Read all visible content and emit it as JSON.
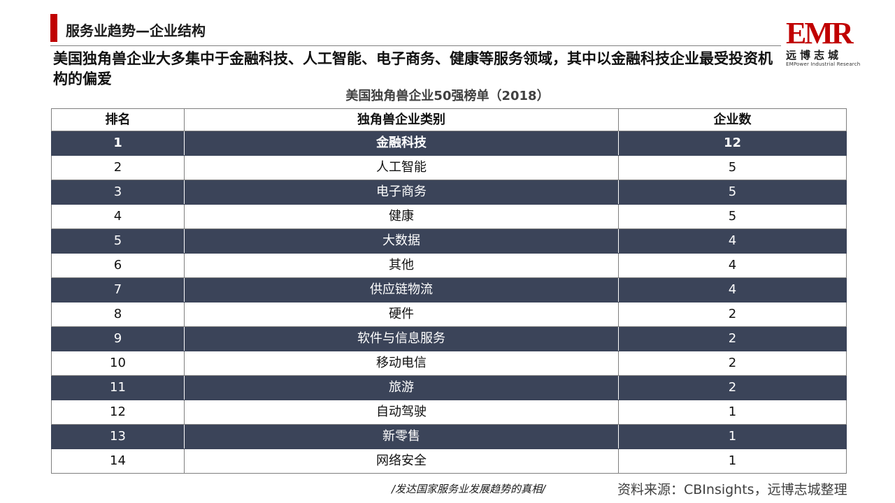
{
  "header": {
    "section_title": "服务业趋势—企业结构",
    "headline": "美国独角兽企业大多集中于金融科技、人工智能、电子商务、健康等服务领域，其中以金融科技企业最受投资机构的偏爱"
  },
  "logo": {
    "mark": "EMR",
    "cn": "远博志城",
    "en": "EMPower Industrial Research"
  },
  "table": {
    "title": "美国独角兽企业50强榜单（2018）",
    "columns": [
      "排名",
      "独角兽企业类别",
      "企业数"
    ],
    "rows": [
      {
        "rank": "1",
        "category": "金融科技",
        "count": "12"
      },
      {
        "rank": "2",
        "category": "人工智能",
        "count": "5"
      },
      {
        "rank": "3",
        "category": "电子商务",
        "count": "5"
      },
      {
        "rank": "4",
        "category": "健康",
        "count": "5"
      },
      {
        "rank": "5",
        "category": "大数据",
        "count": "4"
      },
      {
        "rank": "6",
        "category": "其他",
        "count": "4"
      },
      {
        "rank": "7",
        "category": "供应链物流",
        "count": "4"
      },
      {
        "rank": "8",
        "category": "硬件",
        "count": "2"
      },
      {
        "rank": "9",
        "category": "软件与信息服务",
        "count": "2"
      },
      {
        "rank": "10",
        "category": "移动电信",
        "count": "2"
      },
      {
        "rank": "11",
        "category": "旅游",
        "count": "2"
      },
      {
        "rank": "12",
        "category": "自动驾驶",
        "count": "1"
      },
      {
        "rank": "13",
        "category": "新零售",
        "count": "1"
      },
      {
        "rank": "14",
        "category": "网络安全",
        "count": "1"
      }
    ]
  },
  "footer": {
    "slogan": "/发达国家服务业发展趋势的真相/",
    "source": "资料来源：CBInsights，远博志城整理"
  },
  "colors": {
    "accent": "#c00000",
    "dark_row": "#3b4459"
  }
}
